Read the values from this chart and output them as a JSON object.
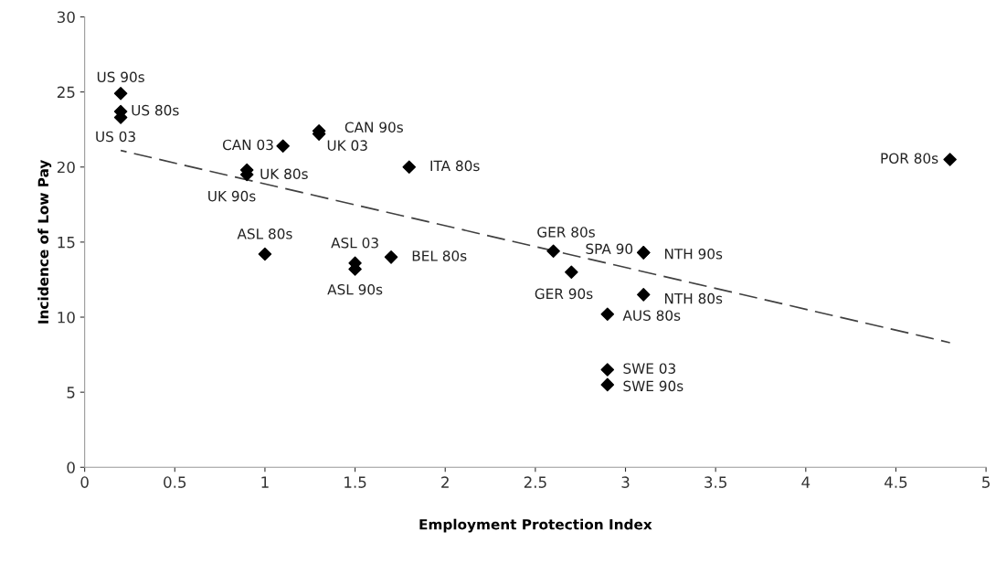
{
  "chart_data": {
    "type": "scatter",
    "xlabel": "Employment Protection Index",
    "ylabel": "Incidence of Low Pay",
    "xlim": [
      0,
      5
    ],
    "xticks": [
      0,
      0.5,
      1,
      1.5,
      2,
      2.5,
      3,
      3.5,
      4,
      4.5,
      5
    ],
    "ylim": [
      0,
      30
    ],
    "yticks": [
      0,
      5,
      10,
      15,
      20,
      25,
      30
    ],
    "grid": false,
    "legend": false,
    "series": [
      {
        "color": "#000000",
        "marker": "diamond",
        "x": [
          0.2,
          0.2,
          0.2,
          1.3,
          1.3,
          1.1,
          0.9,
          0.9,
          1.8,
          1.0,
          1.5,
          1.5,
          1.7,
          2.6,
          3.1,
          3.1,
          2.7,
          3.1,
          2.9,
          2.9,
          2.9,
          4.8
        ],
        "values": [
          24.9,
          23.7,
          23.3,
          22.4,
          22.2,
          21.4,
          19.8,
          19.5,
          20.0,
          14.2,
          13.6,
          13.2,
          14.0,
          14.4,
          14.3,
          14.3,
          13.0,
          11.5,
          10.2,
          6.5,
          5.5,
          20.5
        ]
      },
      {
        "type": "line",
        "color": "#404040",
        "line_style": "dashed",
        "marker": "none",
        "x": [
          0.2,
          4.8
        ],
        "values": [
          21.1,
          8.3
        ]
      }
    ],
    "annotations": [
      {
        "text": "US 90s",
        "x": 0.2,
        "y": 24.9
      },
      {
        "text": "US 80s",
        "x": 0.2,
        "y": 23.7
      },
      {
        "text": "US 03",
        "x": 0.2,
        "y": 23.3
      },
      {
        "text": "CAN 90s",
        "x": 1.3,
        "y": 22.4
      },
      {
        "text": "UK 03",
        "x": 1.3,
        "y": 22.2
      },
      {
        "text": "CAN 03",
        "x": 1.1,
        "y": 21.4
      },
      {
        "text": "UK 80s",
        "x": 0.9,
        "y": 19.8
      },
      {
        "text": "UK 90s",
        "x": 0.9,
        "y": 19.5
      },
      {
        "text": "ITA 80s",
        "x": 1.8,
        "y": 20.0
      },
      {
        "text": "ASL 80s",
        "x": 1.0,
        "y": 14.2
      },
      {
        "text": "ASL 03",
        "x": 1.5,
        "y": 13.6
      },
      {
        "text": "ASL 90s",
        "x": 1.5,
        "y": 13.2
      },
      {
        "text": "BEL 80s",
        "x": 1.7,
        "y": 14.0
      },
      {
        "text": "GER 80s",
        "x": 2.6,
        "y": 14.4
      },
      {
        "text": "SPA 90",
        "x": 3.1,
        "y": 14.3
      },
      {
        "text": "NTH 90s",
        "x": 3.1,
        "y": 14.3
      },
      {
        "text": "GER 90s",
        "x": 2.7,
        "y": 13.0
      },
      {
        "text": "NTH 80s",
        "x": 3.1,
        "y": 11.5
      },
      {
        "text": "AUS 80s",
        "x": 2.9,
        "y": 10.2
      },
      {
        "text": "SWE 03",
        "x": 2.9,
        "y": 6.5
      },
      {
        "text": "SWE 90s",
        "x": 2.9,
        "y": 5.5
      },
      {
        "text": "POR 80s",
        "x": 4.8,
        "y": 20.5
      }
    ]
  }
}
